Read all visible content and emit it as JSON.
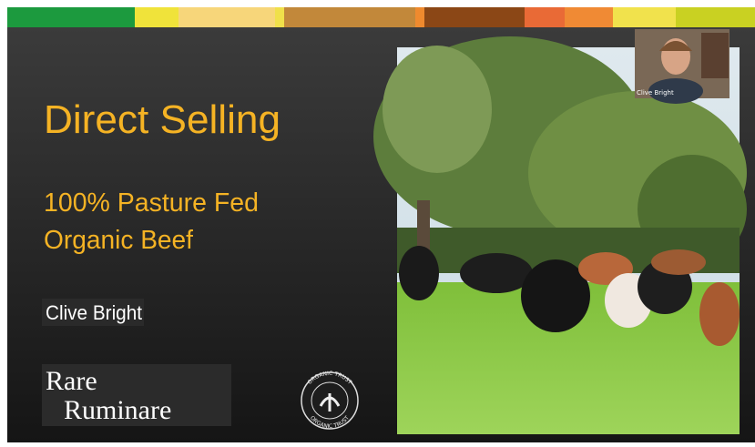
{
  "slide": {
    "title": "Direct Selling",
    "subtitle_lines": [
      "100% Pasture Fed",
      "Organic Beef"
    ],
    "presenter": "Clive Bright",
    "logo_lines": [
      "Rare",
      "Ruminare"
    ],
    "badge_text": "ORGANIC TRUST"
  },
  "video": {
    "participant_name": "Clive Bright"
  }
}
